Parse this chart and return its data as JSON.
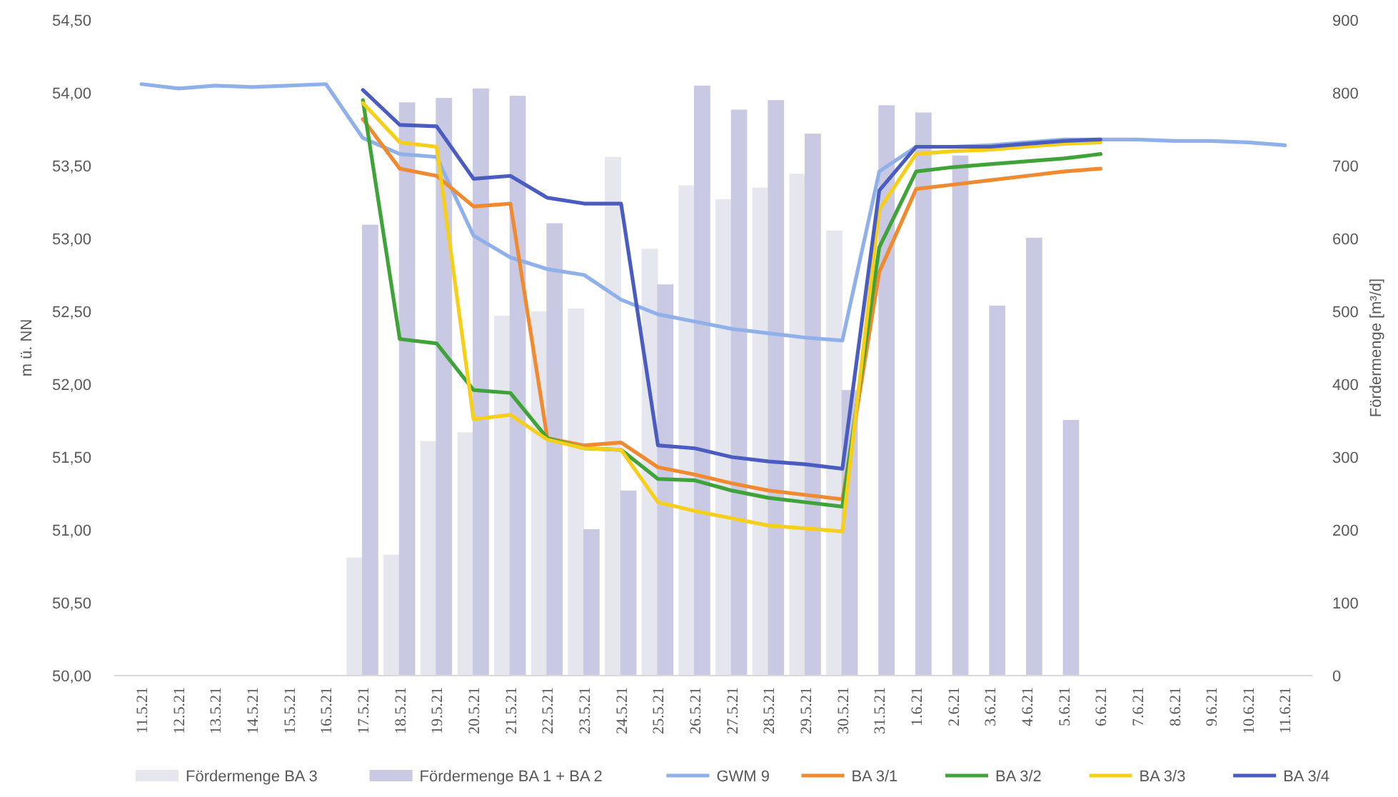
{
  "chart_data": {
    "type": "line",
    "ylabel": "m ü. NN",
    "y2label": "Fördermenge [m³/d]",
    "categories": [
      "11.5.21",
      "12.5.21",
      "13.5.21",
      "14.5.21",
      "15.5.21",
      "16.5.21",
      "17.5.21",
      "18.5.21",
      "19.5.21",
      "20.5.21",
      "21.5.21",
      "22.5.21",
      "23.5.21",
      "24.5.21",
      "25.5.21",
      "26.5.21",
      "27.5.21",
      "28.5.21",
      "29.5.21",
      "30.5.21",
      "31.5.21",
      "1.6.21",
      "2.6.21",
      "3.6.21",
      "4.6.21",
      "5.6.21",
      "6.6.21",
      "7.6.21",
      "8.6.21",
      "9.6.21",
      "10.6.21",
      "11.6.21"
    ],
    "ylim": [
      50,
      54.5
    ],
    "yticks": [
      {
        "value": 50,
        "label": "50,00"
      },
      {
        "value": 50.5,
        "label": "50,50"
      },
      {
        "value": 51,
        "label": "51,00"
      },
      {
        "value": 51.5,
        "label": "51,50"
      },
      {
        "value": 52,
        "label": "52,00"
      },
      {
        "value": 52.5,
        "label": "52,50"
      },
      {
        "value": 53,
        "label": "53,00"
      },
      {
        "value": 53.5,
        "label": "53,50"
      },
      {
        "value": 54,
        "label": "54,00"
      },
      {
        "value": 54.5,
        "label": "54,50"
      }
    ],
    "y2lim": [
      0,
      900
    ],
    "y2ticks": [
      0,
      100,
      200,
      300,
      400,
      500,
      600,
      700,
      800,
      900
    ],
    "grid": false,
    "legend": "bottom",
    "series": [
      {
        "name": "Fördermenge BA 3",
        "type": "bar",
        "axis": "y2",
        "color": "#e6e6ee",
        "values": [
          null,
          null,
          null,
          null,
          null,
          null,
          162,
          166,
          322,
          334,
          494,
          500,
          504,
          712,
          586,
          673,
          654,
          670,
          689,
          611,
          null,
          null,
          null,
          null,
          null,
          null,
          null,
          null,
          null,
          null,
          null,
          null
        ]
      },
      {
        "name": "Fördermenge BA 1 + BA 2",
        "type": "bar",
        "axis": "y2",
        "color": "#c9c9e3",
        "values": [
          null,
          null,
          null,
          null,
          null,
          null,
          619,
          787,
          793,
          806,
          796,
          621,
          201,
          254,
          537,
          810,
          777,
          790,
          744,
          392,
          783,
          773,
          714,
          508,
          601,
          351,
          null,
          null,
          null,
          null,
          null,
          null
        ]
      },
      {
        "name": "GWM 9",
        "color": "#8fb0e8",
        "values": [
          54.06,
          54.03,
          54.05,
          54.04,
          54.05,
          54.06,
          53.69,
          53.58,
          53.56,
          53.02,
          52.87,
          52.79,
          52.75,
          52.58,
          52.48,
          52.43,
          52.38,
          52.35,
          52.32,
          52.3,
          53.46,
          53.63,
          53.63,
          53.64,
          53.66,
          53.68,
          53.68,
          53.68,
          53.67,
          53.67,
          53.66,
          53.64
        ]
      },
      {
        "name": "BA 3/1",
        "color": "#f08a30",
        "values": [
          null,
          null,
          null,
          null,
          null,
          null,
          53.82,
          53.48,
          53.43,
          53.22,
          53.24,
          51.63,
          51.58,
          51.6,
          51.43,
          51.38,
          51.32,
          51.27,
          51.24,
          51.21,
          52.77,
          53.34,
          53.37,
          53.4,
          53.43,
          53.46,
          53.48,
          null,
          null,
          null,
          null,
          null
        ]
      },
      {
        "name": "BA 3/2",
        "color": "#3fa33a",
        "values": [
          null,
          null,
          null,
          null,
          null,
          null,
          53.95,
          52.31,
          52.28,
          51.96,
          51.94,
          51.63,
          51.56,
          51.55,
          51.35,
          51.34,
          51.27,
          51.22,
          51.19,
          51.16,
          52.94,
          53.46,
          53.49,
          53.51,
          53.53,
          53.55,
          53.58,
          null,
          null,
          null,
          null,
          null
        ]
      },
      {
        "name": "BA 3/3",
        "color": "#f5cf1a",
        "values": [
          null,
          null,
          null,
          null,
          null,
          null,
          53.93,
          53.66,
          53.63,
          51.76,
          51.79,
          51.62,
          51.56,
          51.55,
          51.19,
          51.13,
          51.08,
          51.03,
          51.01,
          50.99,
          53.2,
          53.58,
          53.6,
          53.61,
          53.63,
          53.65,
          53.66,
          null,
          null,
          null,
          null,
          null
        ]
      },
      {
        "name": "BA 3/4",
        "color": "#4a5cc0",
        "values": [
          null,
          null,
          null,
          null,
          null,
          null,
          54.02,
          53.78,
          53.77,
          53.41,
          53.43,
          53.28,
          53.24,
          53.24,
          51.58,
          51.56,
          51.5,
          51.47,
          51.45,
          51.42,
          53.33,
          53.63,
          53.63,
          53.63,
          53.65,
          53.67,
          53.68,
          null,
          null,
          null,
          null,
          null
        ]
      }
    ]
  }
}
